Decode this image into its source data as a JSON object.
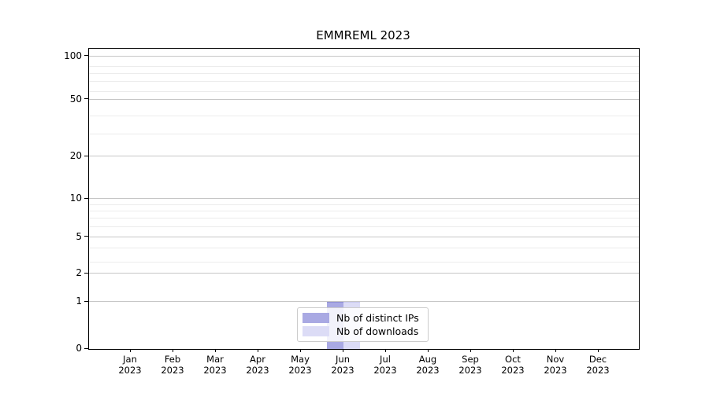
{
  "chart_data": {
    "type": "bar",
    "title": "EMMREML 2023",
    "xlabel": "",
    "ylabel": "",
    "categories": [
      {
        "month": "Jan",
        "year": "2023"
      },
      {
        "month": "Feb",
        "year": "2023"
      },
      {
        "month": "Mar",
        "year": "2023"
      },
      {
        "month": "Apr",
        "year": "2023"
      },
      {
        "month": "May",
        "year": "2023"
      },
      {
        "month": "Jun",
        "year": "2023"
      },
      {
        "month": "Jul",
        "year": "2023"
      },
      {
        "month": "Aug",
        "year": "2023"
      },
      {
        "month": "Sep",
        "year": "2023"
      },
      {
        "month": "Oct",
        "year": "2023"
      },
      {
        "month": "Nov",
        "year": "2023"
      },
      {
        "month": "Dec",
        "year": "2023"
      }
    ],
    "series": [
      {
        "name": "Nb of distinct IPs",
        "color": "#a9a9e3",
        "edge_color": "#8f8fd4",
        "values": [
          0,
          0,
          0,
          0,
          0,
          1,
          0,
          0,
          0,
          0,
          0,
          0
        ]
      },
      {
        "name": "Nb of downloads",
        "color": "#dcdcf6",
        "edge_color": "#c9c9ee",
        "values": [
          0,
          0,
          0,
          0,
          0,
          1,
          0,
          0,
          0,
          0,
          0,
          0
        ]
      }
    ],
    "yticks": [
      {
        "value": 0,
        "frac": 0.0
      },
      {
        "value": 1,
        "frac": 0.156
      },
      {
        "value": 2,
        "frac": 0.251
      },
      {
        "value": 5,
        "frac": 0.372
      },
      {
        "value": 10,
        "frac": 0.5
      },
      {
        "value": 20,
        "frac": 0.641
      },
      {
        "value": 50,
        "frac": 0.83
      },
      {
        "value": 100,
        "frac": 0.974
      }
    ],
    "yminor_values": [
      3,
      4,
      6,
      7,
      8,
      9,
      30,
      40,
      60,
      70,
      80,
      90
    ],
    "yminor_fracs": [
      0.289,
      0.335,
      0.406,
      0.434,
      0.458,
      0.48,
      0.716,
      0.774,
      0.857,
      0.889,
      0.916,
      0.94
    ],
    "yscale": "quasi-log (0,1,2,5,10,20,50,100)",
    "ylim_labels": [
      0,
      100
    ],
    "grid": true,
    "legend_position": "bottom-center",
    "colors": {
      "background": "#ffffff",
      "axis": "#000000",
      "grid_major": "#c6c6c6",
      "grid_minor": "#ececec",
      "legend_border": "#cccccc"
    }
  }
}
